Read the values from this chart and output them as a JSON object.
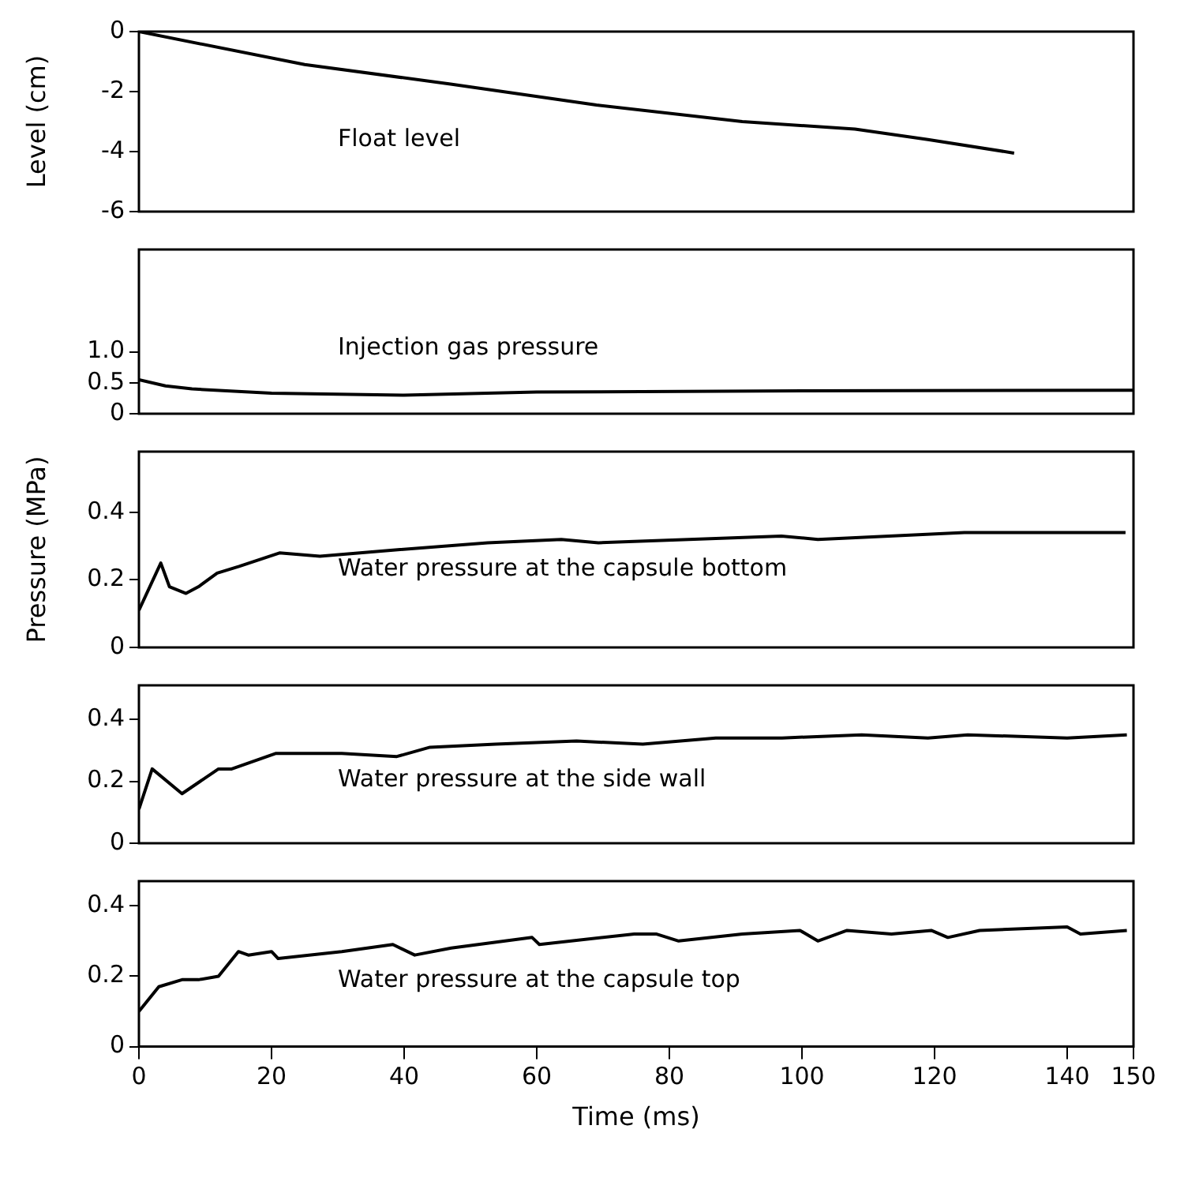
{
  "chart_data": [
    {
      "type": "line",
      "ylabel": "Level (cm)",
      "annotations": [
        "Float level"
      ],
      "xlim": [
        0,
        150
      ],
      "ylim": [
        -6,
        0
      ],
      "yticks": [
        0,
        -2,
        -4,
        -6
      ],
      "tick_labels": "y",
      "grid": false,
      "legend": false,
      "marker": "none",
      "line_style": "solid",
      "series": [
        {
          "color": "#000000",
          "x": [
            0,
            25,
            47,
            69,
            91,
            108,
            119,
            132
          ],
          "values": [
            0,
            -1.1,
            -1.75,
            -2.45,
            -3.0,
            -3.25,
            -3.6,
            -4.05
          ]
        }
      ]
    },
    {
      "type": "line",
      "annotations": [
        "Injection gas pressure"
      ],
      "xlim": [
        0,
        150
      ],
      "ylim": [
        0,
        2.65
      ],
      "yticks": [
        0,
        0.5,
        {
          "value": 1,
          "label": "1.0"
        }
      ],
      "tick_labels": "y",
      "grid": false,
      "legend": false,
      "marker": "none",
      "line_style": "solid",
      "series": [
        {
          "color": "#000000",
          "x": [
            0,
            4,
            8,
            20,
            40,
            60,
            100,
            150
          ],
          "values": [
            0.55,
            0.45,
            0.4,
            0.33,
            0.3,
            0.35,
            0.37,
            0.38
          ]
        }
      ]
    },
    {
      "type": "line",
      "ylabel": "Pressure (MPa)",
      "annotations": [
        "Water pressure at the capsule bottom"
      ],
      "xlim": [
        0,
        150
      ],
      "ylim": [
        0,
        0.58
      ],
      "yticks": [
        0,
        0.2,
        0.4
      ],
      "tick_labels": "y",
      "grid": false,
      "legend": false,
      "marker": "none",
      "line_style": "solid",
      "series": [
        {
          "color": "#000000",
          "x": [
            0,
            3.3,
            4.6,
            7.1,
            9,
            11.8,
            15.1,
            21.2,
            27.3,
            39.4,
            52.6,
            63.7,
            69.3,
            96.9,
            102.4,
            124.5,
            148.8
          ],
          "values": [
            0.11,
            0.25,
            0.18,
            0.16,
            0.18,
            0.22,
            0.24,
            0.28,
            0.27,
            0.29,
            0.31,
            0.32,
            0.31,
            0.33,
            0.32,
            0.34,
            0.34
          ]
        }
      ]
    },
    {
      "type": "line",
      "annotations": [
        "Water pressure at the side wall"
      ],
      "xlim": [
        0,
        150
      ],
      "ylim": [
        0,
        0.51
      ],
      "yticks": [
        0,
        0.2,
        0.4
      ],
      "tick_labels": "y",
      "grid": false,
      "legend": false,
      "marker": "none",
      "line_style": "solid",
      "series": [
        {
          "color": "#000000",
          "x": [
            0,
            2,
            6.5,
            12,
            14,
            20.6,
            30.6,
            38.9,
            43.9,
            53.8,
            66,
            76,
            87,
            97,
            109,
            119,
            125,
            140,
            149
          ],
          "values": [
            0.11,
            0.24,
            0.16,
            0.24,
            0.24,
            0.29,
            0.29,
            0.28,
            0.31,
            0.32,
            0.33,
            0.32,
            0.34,
            0.34,
            0.35,
            0.34,
            0.35,
            0.34,
            0.35
          ]
        }
      ]
    },
    {
      "type": "line",
      "xlabel": "Time (ms)",
      "annotations": [
        "Water pressure at the capsule top"
      ],
      "xlim": [
        0,
        150
      ],
      "ylim": [
        0,
        0.47
      ],
      "xticks": [
        0,
        20,
        40,
        60,
        80,
        100,
        120,
        140,
        150
      ],
      "yticks": [
        0,
        0.2,
        0.4
      ],
      "grid": false,
      "legend": false,
      "marker": "none",
      "line_style": "solid",
      "series": [
        {
          "color": "#000000",
          "x": [
            0,
            3,
            6.5,
            9,
            12,
            15,
            16.5,
            20,
            21,
            30.6,
            38.3,
            41.6,
            47.1,
            59.3,
            60.4,
            74.7,
            78,
            81.4,
            91,
            99.7,
            102.4,
            106.8,
            113.5,
            119.5,
            122,
            126.8,
            140,
            142,
            149
          ],
          "values": [
            0.1,
            0.17,
            0.19,
            0.19,
            0.2,
            0.27,
            0.26,
            0.27,
            0.25,
            0.27,
            0.29,
            0.26,
            0.28,
            0.31,
            0.29,
            0.32,
            0.32,
            0.3,
            0.32,
            0.33,
            0.3,
            0.33,
            0.32,
            0.33,
            0.31,
            0.33,
            0.34,
            0.32,
            0.33
          ]
        }
      ]
    }
  ]
}
